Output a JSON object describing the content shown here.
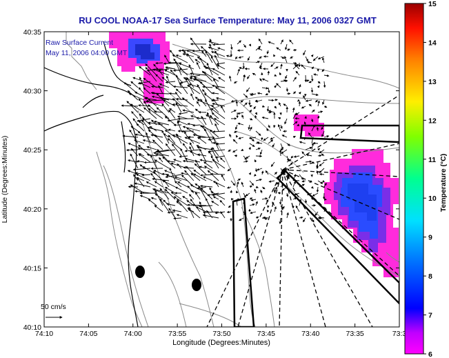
{
  "title": "RU COOL  NOAA-17  Sea Surface Temperature:  May 11, 2006 0327 GMT",
  "legend": {
    "line1": "Raw Surface Current",
    "line2": "May 11, 2006 04:00 GMT"
  },
  "axes": {
    "xlabel": "Longitude (Degrees:Minutes)",
    "ylabel": "Latitude (Degrees:Minutes)",
    "xticks": [
      "74:10",
      "74:05",
      "74:00",
      "73:55",
      "73:50",
      "73:45",
      "73:40",
      "73:35",
      "73:3"
    ],
    "yticks": [
      "40:35",
      "40:30",
      "40:25",
      "40:20",
      "40:15",
      "40:10"
    ]
  },
  "colorbar": {
    "label": "Temperature (°C)",
    "ticks": [
      "15",
      "14",
      "13",
      "12",
      "11",
      "10",
      "9",
      "8",
      "7",
      "6"
    ],
    "min": 6,
    "max": 15
  },
  "scale_label": "50 cm/s",
  "colors": {
    "title": "#1a1aa8",
    "legend_text": "#1a1aa8",
    "warm_patch": "#ff2bdc",
    "cool_patch": "#1c3cff",
    "frame": "#000000"
  }
}
